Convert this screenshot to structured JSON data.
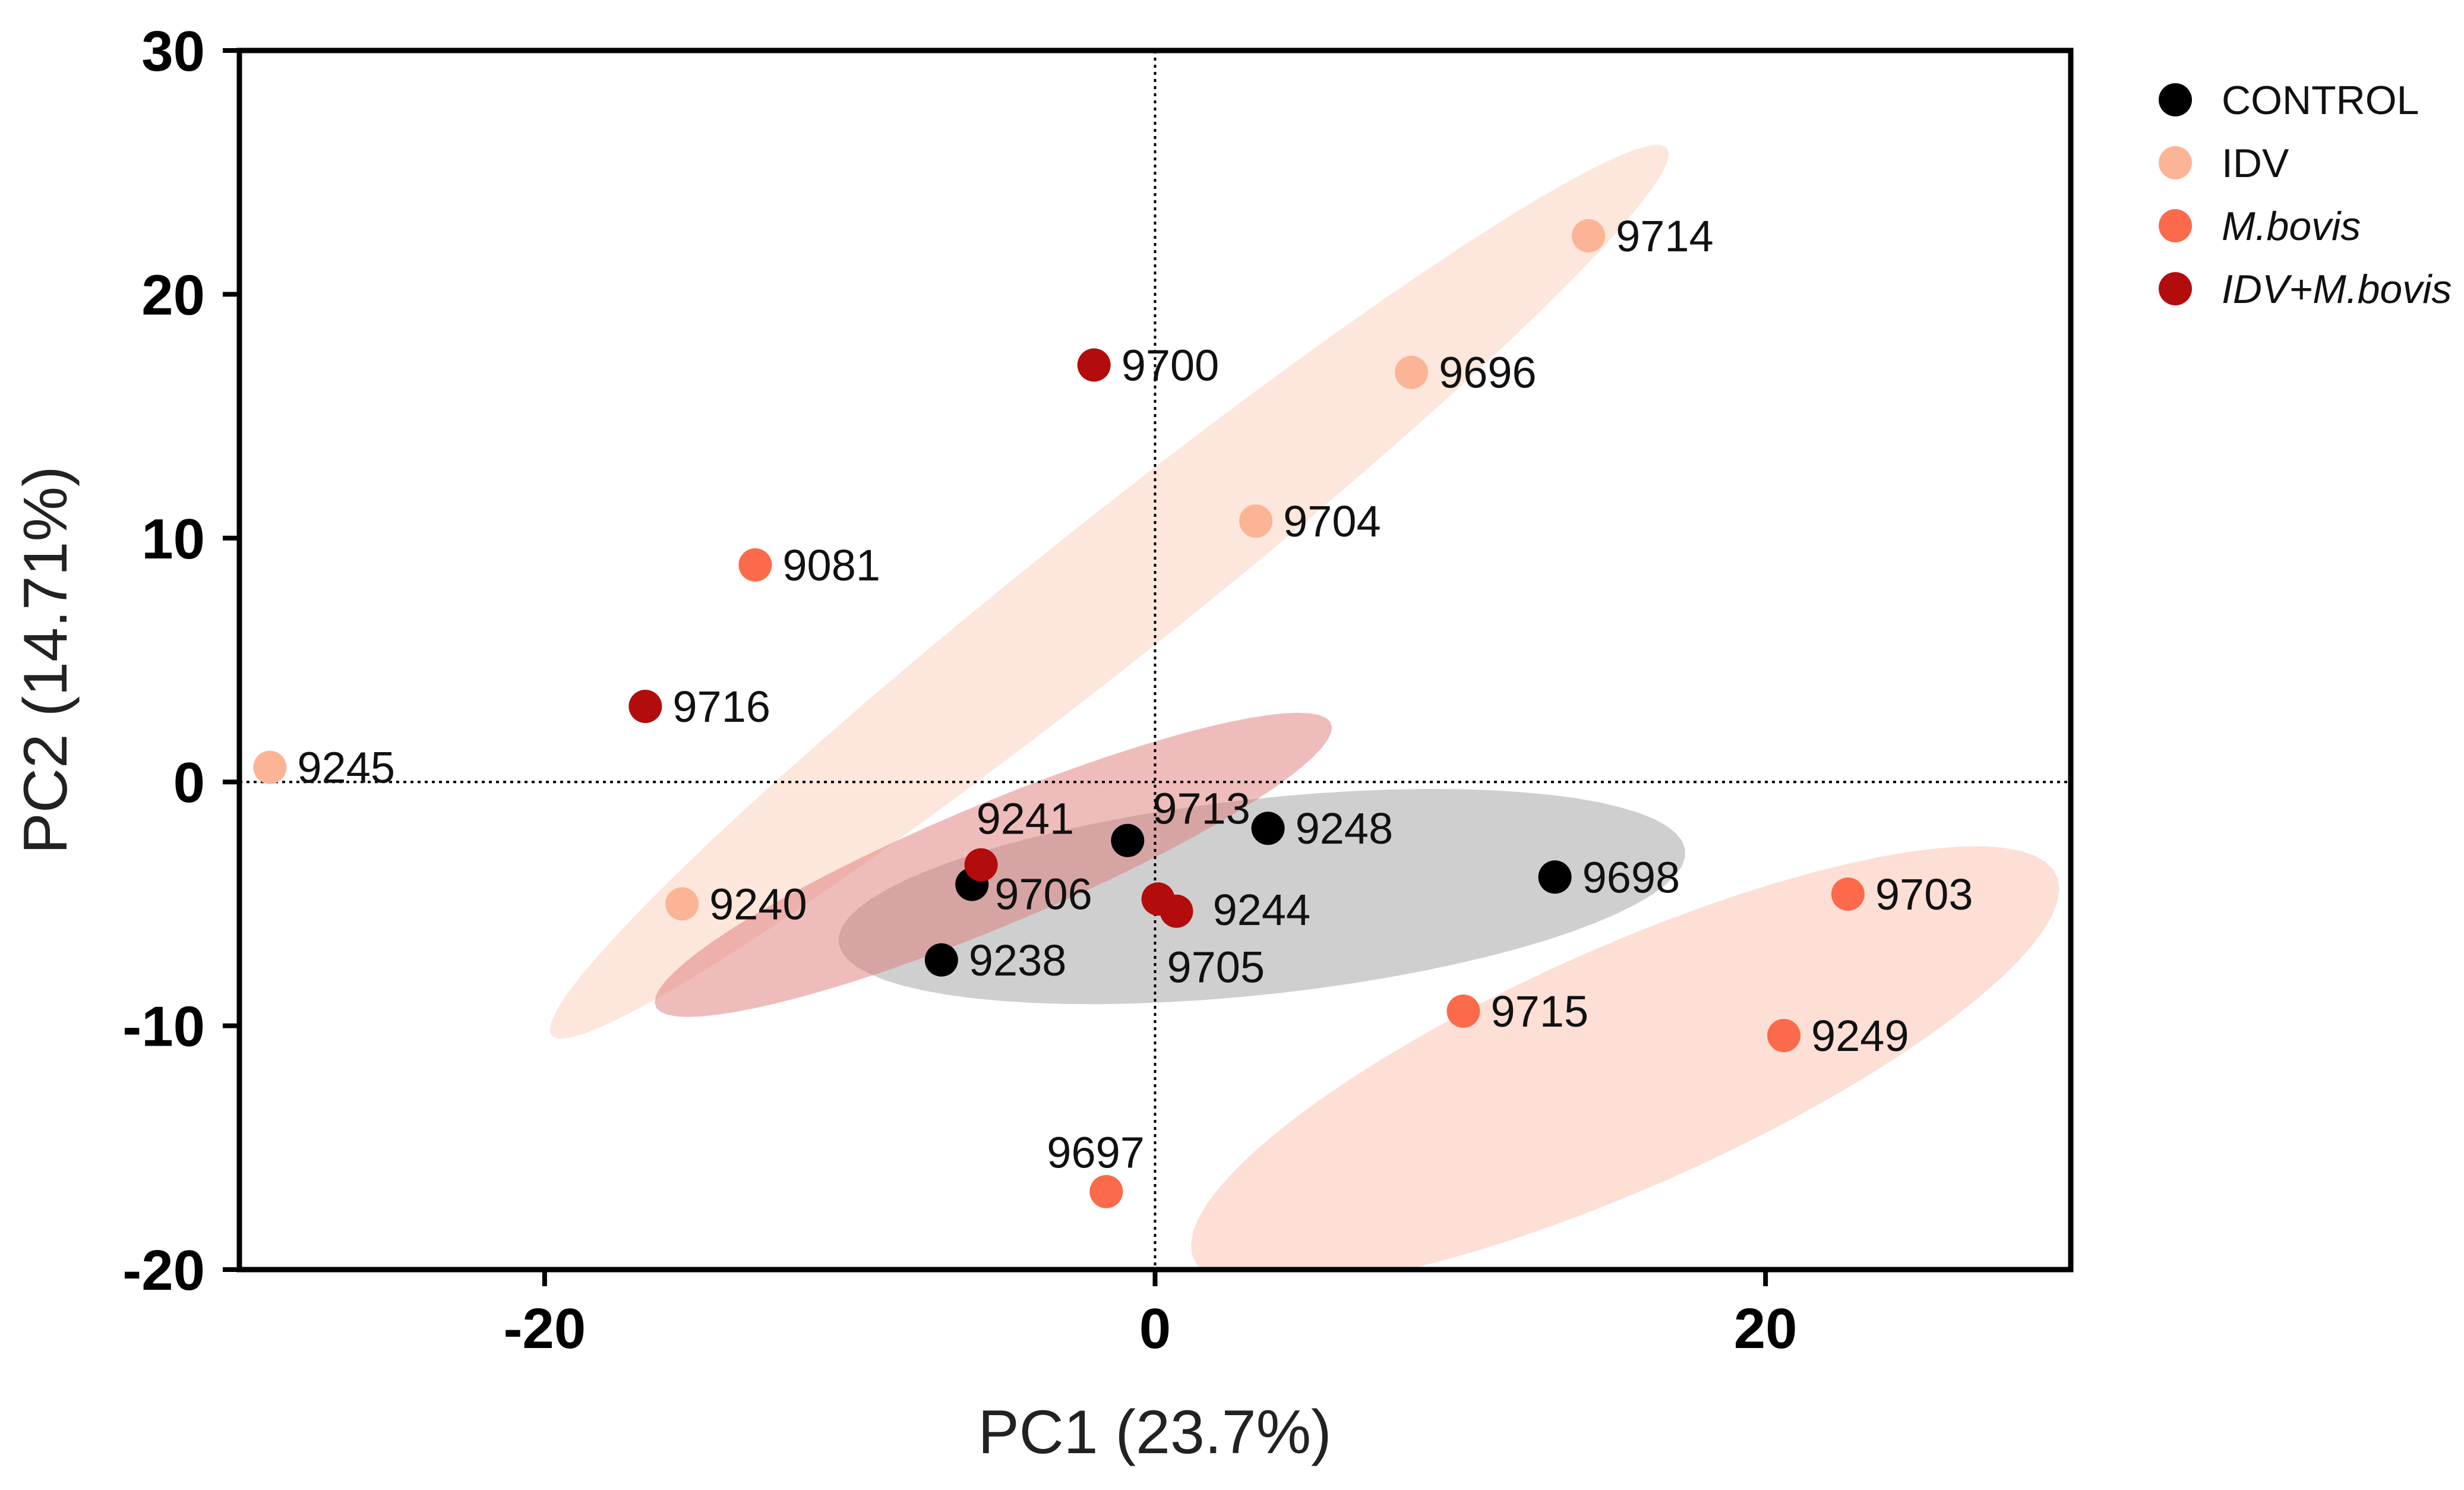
{
  "chart_data": {
    "type": "scatter",
    "title": "",
    "xlabel": "PC1 (23.7%)",
    "ylabel": "PC2 (14.71%)",
    "xlim": [
      -30,
      30
    ],
    "ylim": [
      -20,
      30
    ],
    "xticks": [
      -20,
      0,
      20
    ],
    "yticks": [
      -20,
      -10,
      0,
      10,
      20,
      30
    ],
    "reference_lines": {
      "x": 0,
      "y": 0,
      "style": "dotted"
    },
    "legend_position": "top-right",
    "series": [
      {
        "name": "CONTROL",
        "color": "#000000",
        "italic": false,
        "points": [
          {
            "label": "9713",
            "x": -0.9,
            "y": -2.4
          },
          {
            "label": "9248",
            "x": 3.7,
            "y": -1.9
          },
          {
            "label": "9698",
            "x": 13.1,
            "y": -3.9
          },
          {
            "label": "9238",
            "x": -7.0,
            "y": -7.3
          },
          {
            "label": "9706",
            "x": -6.0,
            "y": -4.2
          }
        ],
        "ellipse": {
          "cx": 3.5,
          "cy": -4.7,
          "rx": 14.0,
          "ry": 4.0,
          "angle_deg": 8,
          "color": "#a8a8a8",
          "opacity": 0.55
        }
      },
      {
        "name": "IDV",
        "color": "#fbb496",
        "italic": false,
        "points": [
          {
            "label": "9714",
            "x": 14.2,
            "y": 22.4
          },
          {
            "label": "9696",
            "x": 8.4,
            "y": 16.8
          },
          {
            "label": "9704",
            "x": 3.3,
            "y": 10.7
          },
          {
            "label": "9245",
            "x": -29.0,
            "y": 0.6
          },
          {
            "label": "9240",
            "x": -15.5,
            "y": -5.0
          }
        ],
        "ellipse": {
          "cx": -1.5,
          "cy": 7.8,
          "rx": 25.8,
          "ry": 2.6,
          "angle_deg": 45,
          "color": "#fbd1bd",
          "opacity": 0.55
        }
      },
      {
        "name": "M.bovis",
        "color": "#fb6a4a",
        "italic": true,
        "points": [
          {
            "label": "9081",
            "x": -13.1,
            "y": 8.9
          },
          {
            "label": "9703",
            "x": 22.7,
            "y": -4.6
          },
          {
            "label": "9715",
            "x": 10.1,
            "y": -9.4
          },
          {
            "label": "9249",
            "x": 20.6,
            "y": -10.4
          },
          {
            "label": "9697",
            "x": -1.6,
            "y": -16.8
          }
        ],
        "ellipse": {
          "cx": 15.4,
          "cy": -11.7,
          "rx": 16.2,
          "ry": 4.7,
          "angle_deg": 30,
          "color": "#fcc5b5",
          "opacity": 0.55
        }
      },
      {
        "name": "IDV+M.bovis",
        "color": "#b30c0c",
        "italic": true,
        "points": [
          {
            "label": "9700",
            "x": -2.0,
            "y": 17.1
          },
          {
            "label": "9716",
            "x": -16.7,
            "y": 3.1
          },
          {
            "label": "9241",
            "x": -5.7,
            "y": -3.4
          },
          {
            "label": "9244",
            "x": 0.1,
            "y": -4.8
          },
          {
            "label": "9705",
            "x": 0.7,
            "y": -5.3
          }
        ],
        "ellipse": {
          "cx": -5.3,
          "cy": -3.4,
          "rx": 12.5,
          "ry": 2.4,
          "angle_deg": 28,
          "color": "#e07a7a",
          "opacity": 0.5
        }
      }
    ]
  }
}
